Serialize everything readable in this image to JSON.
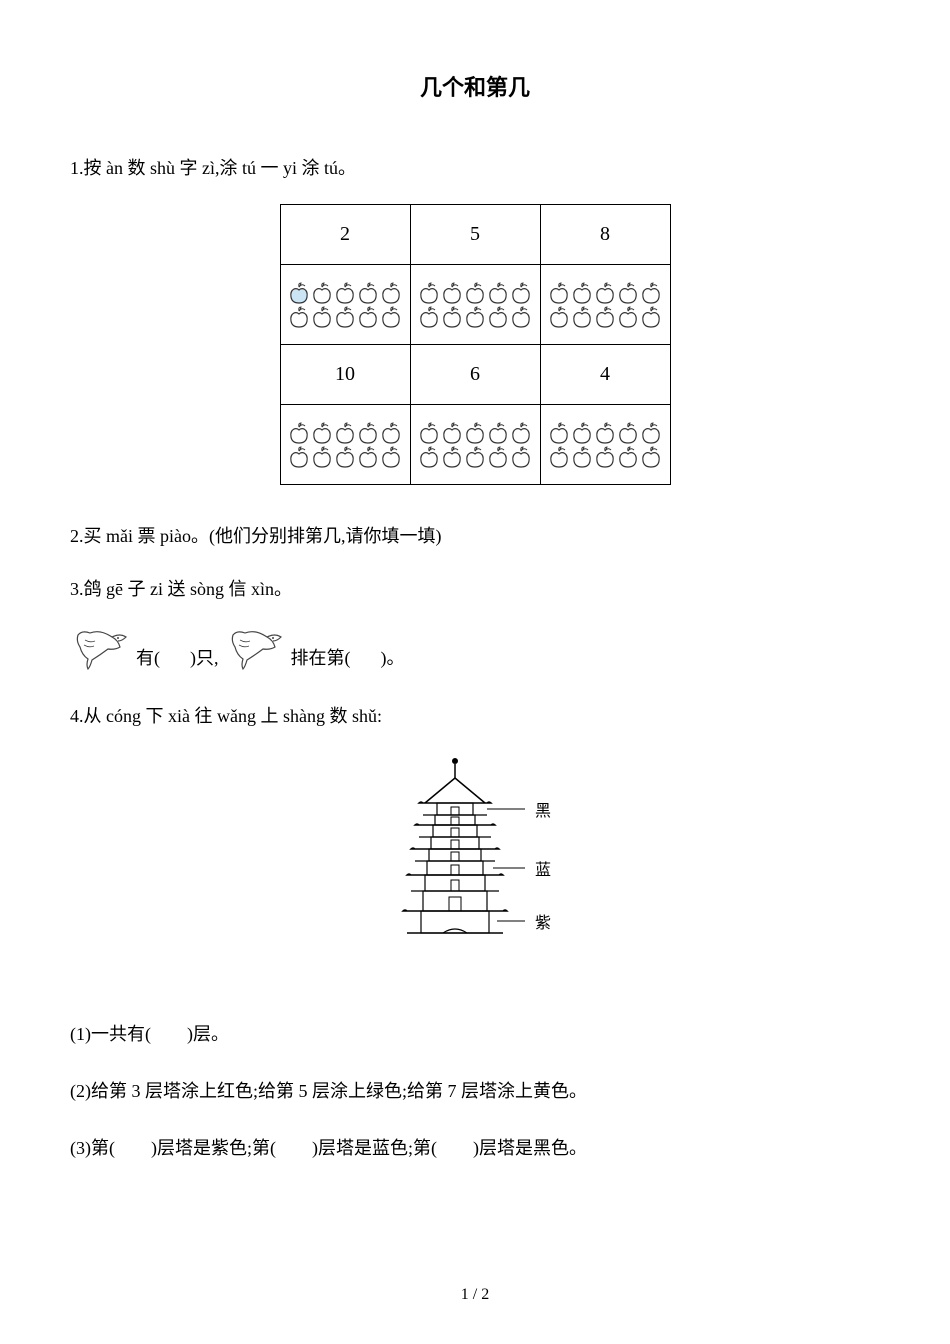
{
  "title": "几个和第几",
  "q1": {
    "text": "1.按 àn 数 shù 字 zì,涂 tú 一 yi 涂 tú。",
    "row1_nums": [
      "2",
      "5",
      "8"
    ],
    "row2_nums": [
      "10",
      "6",
      "4"
    ],
    "apple_count_per_cell": 10,
    "filled_index": 0,
    "apple_outline": "#333333",
    "apple_filled": "#cce5f5"
  },
  "q2": {
    "text": "2.买 mǎi 票 piào。(他们分别排第几,请你填一填)"
  },
  "q3": {
    "text": "3.鸽 gē 子 zi 送 sòng 信 xìn。",
    "part1": "有(",
    "part2": ")只,",
    "part3": "排在第(",
    "part4": ")。",
    "pigeon_color": "#444444"
  },
  "q4": {
    "text": "4.从 cóng 下 xià 往 wǎng 上 shàng 数 shǔ:",
    "labels": {
      "black": "黑",
      "blue": "蓝",
      "purple": "紫"
    },
    "pagoda_stroke": "#000000",
    "sub1": "(1)一共有(　　)层。",
    "sub2": "(2)给第 3 层塔涂上红色;给第 5 层涂上绿色;给第 7 层塔涂上黄色。",
    "sub3": "(3)第(　　)层塔是紫色;第(　　)层塔是蓝色;第(　　)层塔是黑色。"
  },
  "pagenum": "1 / 2"
}
